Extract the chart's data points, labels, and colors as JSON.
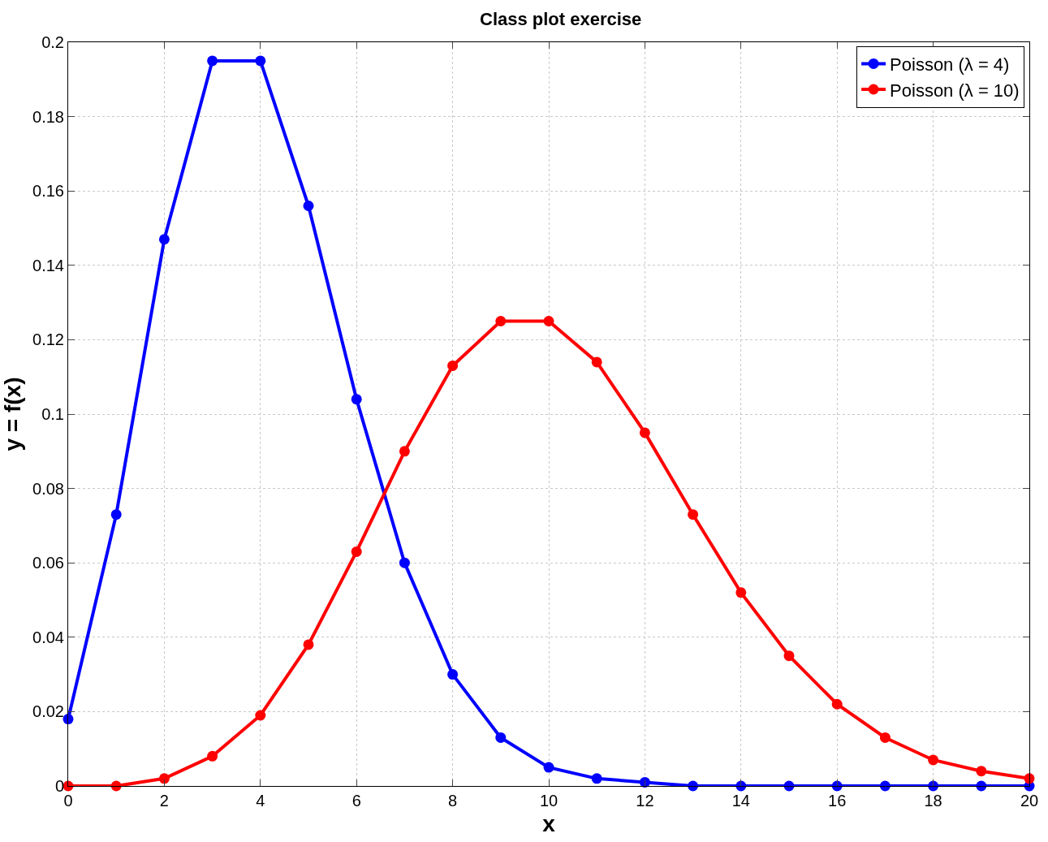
{
  "chart_data": {
    "type": "line",
    "title": "Class plot exercise",
    "xlabel": "x",
    "ylabel": "y = f(x)",
    "x": [
      0,
      1,
      2,
      3,
      4,
      5,
      6,
      7,
      8,
      9,
      10,
      11,
      12,
      13,
      14,
      15,
      16,
      17,
      18,
      19,
      20
    ],
    "series": [
      {
        "name": "Poisson (λ = 4)",
        "color": "#0000ff",
        "values": [
          0.018,
          0.073,
          0.147,
          0.195,
          0.195,
          0.156,
          0.104,
          0.06,
          0.03,
          0.013,
          0.005,
          0.002,
          0.001,
          0.0,
          0.0,
          0.0,
          0.0,
          0.0,
          0.0,
          0.0,
          0.0
        ]
      },
      {
        "name": "Poisson (λ = 10)",
        "color": "#ff0000",
        "values": [
          0.0,
          0.0,
          0.002,
          0.008,
          0.019,
          0.038,
          0.063,
          0.09,
          0.113,
          0.125,
          0.125,
          0.114,
          0.095,
          0.073,
          0.052,
          0.035,
          0.022,
          0.013,
          0.007,
          0.004,
          0.002
        ]
      }
    ],
    "xlim": [
      0,
      20
    ],
    "xticks": [
      0,
      2,
      4,
      6,
      8,
      10,
      12,
      14,
      16,
      18,
      20
    ],
    "ylim": [
      0,
      0.2
    ],
    "yticks": [
      0,
      0.02,
      0.04,
      0.06,
      0.08,
      0.1,
      0.12,
      0.14,
      0.16,
      0.18,
      0.2
    ],
    "grid": true,
    "legend": "top right",
    "marker": "circle",
    "line_style": "solid"
  }
}
